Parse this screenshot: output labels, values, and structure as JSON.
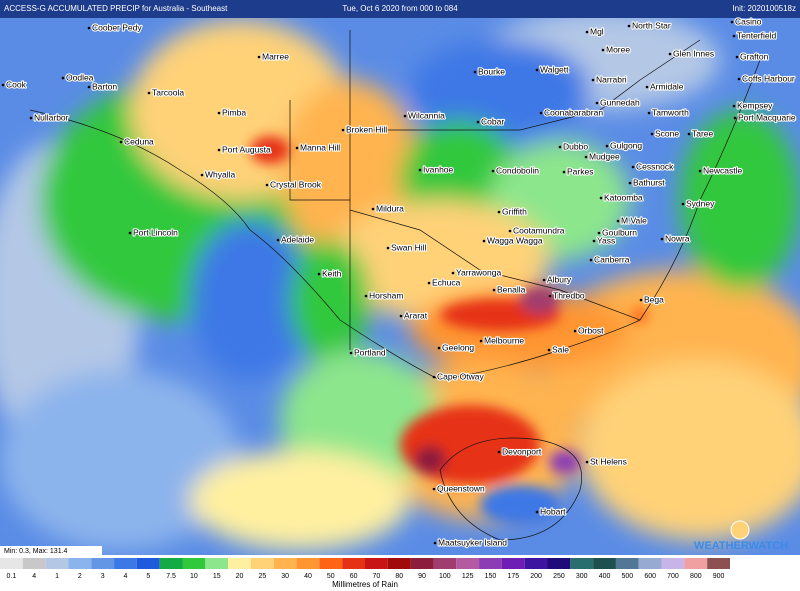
{
  "header": {
    "title": "ACCESS-G ACCUMULATED PRECIP for Australia - Southeast",
    "period": "Tue, Oct 6 2020 from 000 to 084",
    "init": "Init: 2020100518z"
  },
  "stats": "Min: 0.3, Max: 131.4",
  "logo": "WEATHERWATCH",
  "places": [
    "Coober Pedy",
    "Marree",
    "Cook",
    "Oodlea",
    "Barton",
    "Tarcoola",
    "Nullarbor",
    "Pimba",
    "Ceduna",
    "Port Augusta",
    "Whyalla",
    "Crystal Brook",
    "Manna Hill",
    "Broken Hill",
    "Wilcannia",
    "Bourke",
    "Walgett",
    "Moree",
    "Mgl",
    "North Star",
    "Casino",
    "Tenterfield",
    "Glen Innes",
    "Grafton",
    "Coffs Harbour",
    "Armidale",
    "Narrabri",
    "Gunnedah",
    "Coonabarabran",
    "Tamworth",
    "Kempsey",
    "Port Macquarie",
    "Cobar",
    "Scone",
    "Taree",
    "Dubbo",
    "Gulgong",
    "Mudgee",
    "Cessnock",
    "Newcastle",
    "Bathurst",
    "Parkes",
    "Condobolin",
    "Ivanhoe",
    "Katoomba",
    "Sydney",
    "Port Lincoln",
    "Mildura",
    "Griffith",
    "M.Vale",
    "Cootamundra",
    "Goulburn",
    "Yass",
    "Wagga Wagga",
    "Nowra",
    "Adelaide",
    "Canberra",
    "Swan Hill",
    "Keith",
    "Yarrawonga",
    "Echuca",
    "Albury",
    "Benalla",
    "Thredbo",
    "Horsham",
    "Bega",
    "Ararat",
    "Orbost",
    "Melbourne",
    "Geelong",
    "Sale",
    "Portland",
    "Cape Otway",
    "Devonport",
    "St Helens",
    "Queenstown",
    "Hobart",
    "Maatsuyker Island"
  ],
  "legend": {
    "title": "Millimetres of Rain",
    "items": [
      {
        "label": "0.1",
        "color": "#e6e6e6"
      },
      {
        "label": "4",
        "color": "#c8c8c8"
      },
      {
        "label": "1",
        "color": "#b4c8e6"
      },
      {
        "label": "2",
        "color": "#8cb4ec"
      },
      {
        "label": "3",
        "color": "#6496e6"
      },
      {
        "label": "4",
        "color": "#3c78e6"
      },
      {
        "label": "5",
        "color": "#1e5adc"
      },
      {
        "label": "7.5",
        "color": "#14aa46"
      },
      {
        "label": "10",
        "color": "#32c83c"
      },
      {
        "label": "15",
        "color": "#8ce68c"
      },
      {
        "label": "20",
        "color": "#fff0a0"
      },
      {
        "label": "25",
        "color": "#ffd278"
      },
      {
        "label": "30",
        "color": "#ffb450"
      },
      {
        "label": "40",
        "color": "#ff9632"
      },
      {
        "label": "50",
        "color": "#ff6414"
      },
      {
        "label": "60",
        "color": "#e63214"
      },
      {
        "label": "70",
        "color": "#c81414"
      },
      {
        "label": "80",
        "color": "#a00a0a"
      },
      {
        "label": "90",
        "color": "#8c1e3c"
      },
      {
        "label": "100",
        "color": "#a03c6e"
      },
      {
        "label": "125",
        "color": "#b45aa0"
      },
      {
        "label": "150",
        "color": "#8c3cb4"
      },
      {
        "label": "175",
        "color": "#6e1eb4"
      },
      {
        "label": "200",
        "color": "#3c14a0"
      },
      {
        "label": "250",
        "color": "#1e0a78"
      },
      {
        "label": "300",
        "color": "#286e6e"
      },
      {
        "label": "400",
        "color": "#1e5050"
      },
      {
        "label": "500",
        "color": "#507896"
      },
      {
        "label": "600",
        "color": "#96aad2"
      },
      {
        "label": "700",
        "color": "#c8b4e6"
      },
      {
        "label": "800",
        "color": "#f0a0a0"
      },
      {
        "label": "900",
        "color": "#8c5050"
      }
    ]
  }
}
